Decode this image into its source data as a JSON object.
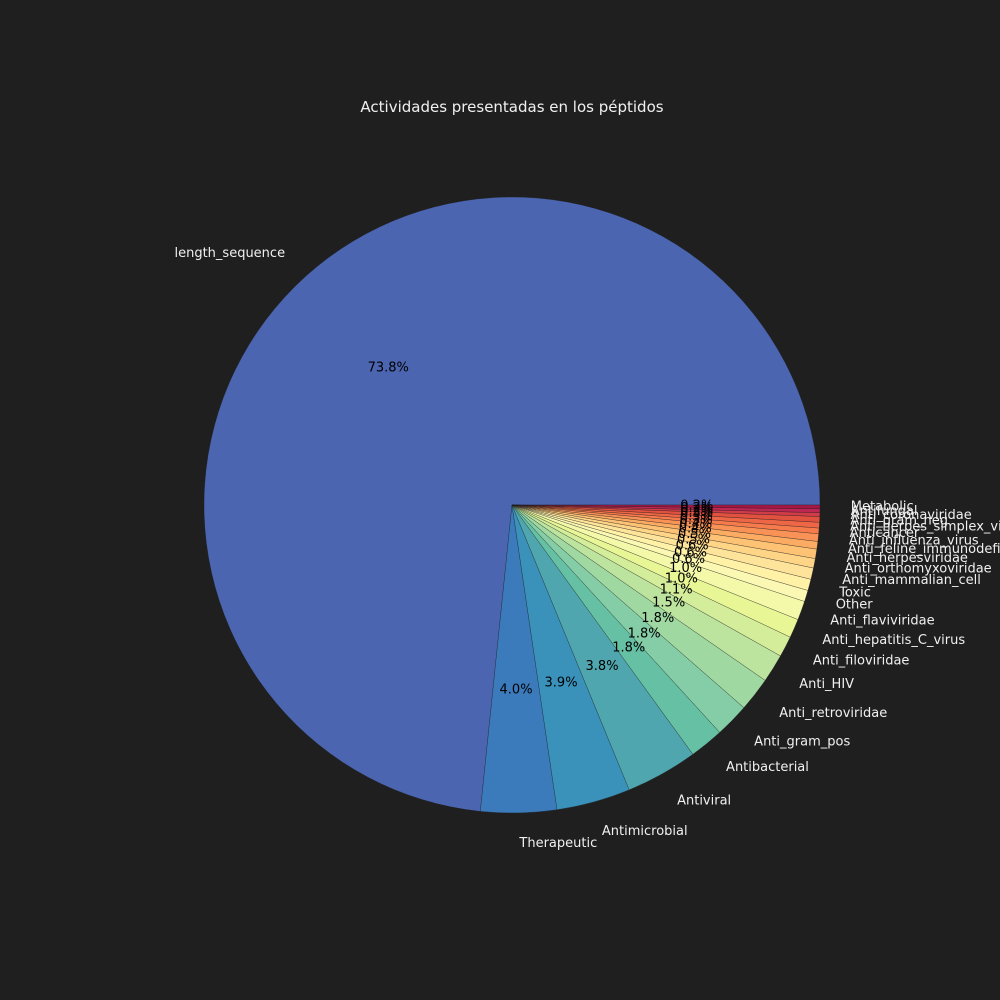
{
  "chart_data": {
    "type": "pie",
    "title": "Actividades presentadas en los péptidos",
    "start_angle_deg": 0,
    "direction": "counterclockwise",
    "slices": [
      {
        "label": "length_sequence",
        "value": 73.8,
        "pct_label": "73.8%",
        "color": "#4b65b0"
      },
      {
        "label": "Therapeutic",
        "value": 4.0,
        "pct_label": "4.0%",
        "color": "#3b7bbc"
      },
      {
        "label": "Antimicrobial",
        "value": 3.9,
        "pct_label": "3.9%",
        "color": "#3a92bb"
      },
      {
        "label": "Antiviral",
        "value": 3.8,
        "pct_label": "3.8%",
        "color": "#4fa6ae"
      },
      {
        "label": "Antibacterial",
        "value": 1.8,
        "pct_label": "1.8%",
        "color": "#66c0a4"
      },
      {
        "label": "Anti_gram_pos",
        "value": 1.8,
        "pct_label": "1.8%",
        "color": "#84cda6"
      },
      {
        "label": "Anti_retroviridae",
        "value": 1.8,
        "pct_label": "1.8%",
        "color": "#a0d8a2"
      },
      {
        "label": "Anti_HIV",
        "value": 1.5,
        "pct_label": "1.5%",
        "color": "#bce49e"
      },
      {
        "label": "Anti_filoviridae",
        "value": 1.1,
        "pct_label": "1.1%",
        "color": "#d4ed9a"
      },
      {
        "label": "Anti_hepatitis_C_virus",
        "value": 1.0,
        "pct_label": "1.0%",
        "color": "#e8f695"
      },
      {
        "label": "Anti_flaviviridae",
        "value": 1.0,
        "pct_label": "1.0%",
        "color": "#f3f9a8"
      },
      {
        "label": "Other",
        "value": 0.6,
        "pct_label": "0.6%",
        "color": "#fbf8b3"
      },
      {
        "label": "Toxic",
        "value": 0.6,
        "pct_label": "0.6%",
        "color": "#fff1a6"
      },
      {
        "label": "Anti_mammalian_cell",
        "value": 0.6,
        "pct_label": "0.6%",
        "color": "#fee49a"
      },
      {
        "label": "Anti_orthomyxoviridae",
        "value": 0.5,
        "pct_label": "0.5%",
        "color": "#fed486"
      },
      {
        "label": "Anti_herpesviridae",
        "value": 0.5,
        "pct_label": "0.5%",
        "color": "#fdc273"
      },
      {
        "label": "Anti_feline_immunodeficiency_virus",
        "value": 0.4,
        "pct_label": "0.4%",
        "color": "#fcab63"
      },
      {
        "label": "Anti_influenza_virus",
        "value": 0.4,
        "pct_label": "0.4%",
        "color": "#f99257"
      },
      {
        "label": "Anticancer",
        "value": 0.3,
        "pct_label": "0.3%",
        "color": "#f57b4c"
      },
      {
        "label": "Anti_herpes_simplex_virus",
        "value": 0.3,
        "pct_label": "0.3%",
        "color": "#ed6645"
      },
      {
        "label": "Anti_gram_neg",
        "value": 0.3,
        "pct_label": "0.3%",
        "color": "#e0513f"
      },
      {
        "label": "Anti_coronaviridae",
        "value": 0.2,
        "pct_label": "0.2%",
        "color": "#d13c49"
      },
      {
        "label": "Antifungal",
        "value": 0.2,
        "pct_label": "0.2%",
        "color": "#bd2752"
      },
      {
        "label": "Metabolic",
        "value": 0.2,
        "pct_label": "0.2%",
        "color": "#a71746"
      }
    ]
  }
}
